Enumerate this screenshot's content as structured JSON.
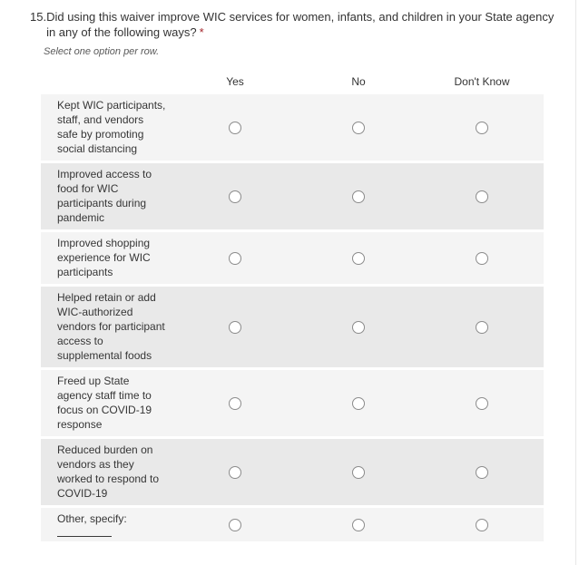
{
  "question": {
    "number": "15.",
    "text": "Did using this waiver improve WIC services for women, infants, and children in your State agency in any of the following ways?",
    "required_marker": "*",
    "instruction": "Select one option per row."
  },
  "matrix": {
    "columns": [
      "Yes",
      "No",
      "Don't Know"
    ],
    "rows": [
      {
        "label": "Kept WIC participants, staff, and vendors safe by promoting social distancing",
        "has_blank": false
      },
      {
        "label": "Improved access to food for WIC participants during pandemic",
        "has_blank": false
      },
      {
        "label": "Improved shopping experience for WIC participants",
        "has_blank": false
      },
      {
        "label": "Helped retain or add WIC-authorized vendors for participant access to supplemental foods",
        "has_blank": false
      },
      {
        "label": "Freed up State agency staff time to focus on COVID-19 response",
        "has_blank": false
      },
      {
        "label": "Reduced burden on vendors as they worked to respond to COVID-19",
        "has_blank": false
      },
      {
        "label": "Other, specify:",
        "has_blank": true
      }
    ]
  },
  "colors": {
    "row_light": "#f4f4f4",
    "row_dark": "#e9e9e9",
    "text": "#333333",
    "required": "#a4262c",
    "radio_border": "#8b8b8b"
  }
}
